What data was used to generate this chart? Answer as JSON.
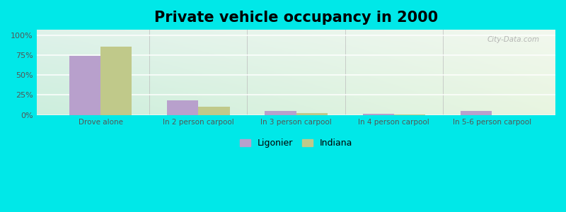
{
  "title": "Private vehicle occupancy in 2000",
  "categories": [
    "Drove alone",
    "In 2 person carpool",
    "In 3 person carpool",
    "In 4 person carpool",
    "In 5-6 person carpool"
  ],
  "ligonier_values": [
    74,
    18,
    5,
    1,
    5
  ],
  "indiana_values": [
    86,
    10,
    2,
    0.5,
    0
  ],
  "ligonier_color": "#b8a0cc",
  "indiana_color": "#c0c98a",
  "background_outer": "#00e8e8",
  "title_fontsize": 15,
  "ylabel_ticks": [
    "0%",
    "25%",
    "50%",
    "75%",
    "100%"
  ],
  "ytick_values": [
    0,
    25,
    50,
    75,
    100
  ],
  "ylim": [
    0,
    107
  ],
  "bar_width": 0.32,
  "legend_labels": [
    "Ligonier",
    "Indiana"
  ],
  "watermark": "⌕ City-Data.com",
  "bg_top_left": "#e8f5f0",
  "bg_top_right": "#f0f8f0",
  "bg_bottom_left": "#d0eedc",
  "bg_bottom_right": "#e8f5e8"
}
